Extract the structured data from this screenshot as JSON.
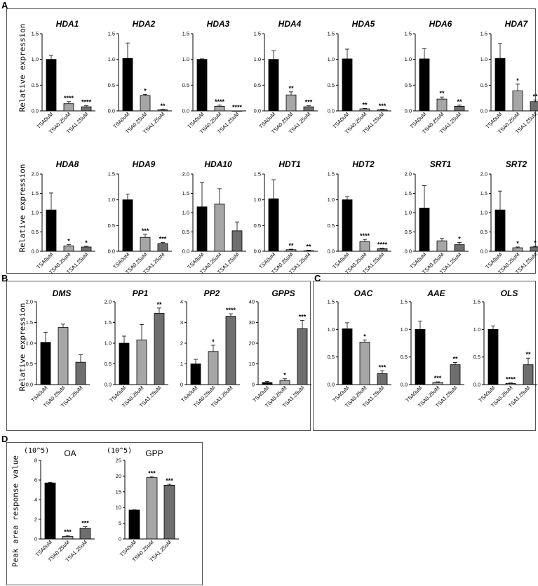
{
  "panels": [
    {
      "letter": "A",
      "ylabel": "Relative expression"
    },
    {
      "letter": "B",
      "ylabel": "Relative expression"
    },
    {
      "letter": "C"
    },
    {
      "letter": "D",
      "ylabel": "Peak area response value",
      "unit_labels": [
        "(10^5)",
        "(10^5)"
      ]
    }
  ],
  "categories": [
    "TSA0uM",
    "TSA0.25uM",
    "TSA1.25uM"
  ],
  "colors": {
    "bar1": "#000000",
    "bar2": "#a6a6a6",
    "bar3": "#6e6e6e"
  },
  "chart_data": [
    {
      "type": "bar",
      "panel": "A",
      "title": "HDA1",
      "ylim": [
        0,
        1.5
      ],
      "yticks": [
        "0.0",
        "0.5",
        "1.0",
        "1.5"
      ],
      "categories": [
        "TSA0uM",
        "TSA0.25uM",
        "TSA1.25uM"
      ],
      "values": [
        1.0,
        0.14,
        0.08
      ],
      "errors": [
        0.08,
        0.04,
        0.02
      ],
      "annotations": [
        "",
        "****",
        "****"
      ]
    },
    {
      "type": "bar",
      "panel": "A",
      "title": "HDA2",
      "ylim": [
        0,
        1.5
      ],
      "yticks": [
        "0.0",
        "0.5",
        "1.0",
        "1.5"
      ],
      "categories": [
        "TSA0uM",
        "TSA0.25uM",
        "TSA1.25uM"
      ],
      "values": [
        1.02,
        0.3,
        0.02
      ],
      "errors": [
        0.3,
        0.02,
        0.01
      ],
      "annotations": [
        "",
        "*",
        "**"
      ]
    },
    {
      "type": "bar",
      "panel": "A",
      "title": "HDA3",
      "ylim": [
        0,
        1.5
      ],
      "yticks": [
        "0.0",
        "0.5",
        "1.0",
        "1.5"
      ],
      "categories": [
        "TSA0uM",
        "TSA0.25uM",
        "TSA1.25uM"
      ],
      "values": [
        1.0,
        0.09,
        0.0
      ],
      "errors": [
        0.01,
        0.02,
        0.0
      ],
      "annotations": [
        "",
        "****",
        "****"
      ]
    },
    {
      "type": "bar",
      "panel": "A",
      "title": "HDA4",
      "ylim": [
        0,
        1.5
      ],
      "yticks": [
        "0.0",
        "0.5",
        "1.0",
        "1.5"
      ],
      "categories": [
        "TSA0uM",
        "TSA0.25uM",
        "TSA1.25uM"
      ],
      "values": [
        1.0,
        0.31,
        0.08
      ],
      "errors": [
        0.17,
        0.06,
        0.02
      ],
      "annotations": [
        "",
        "**",
        "***"
      ]
    },
    {
      "type": "bar",
      "panel": "A",
      "title": "HDA5",
      "ylim": [
        0,
        1.5
      ],
      "yticks": [
        "0.0",
        "0.5",
        "1.0",
        "1.5"
      ],
      "categories": [
        "TSA0uM",
        "TSA0.25uM",
        "TSA1.25uM"
      ],
      "values": [
        1.01,
        0.04,
        0.02
      ],
      "errors": [
        0.19,
        0.01,
        0.01
      ],
      "annotations": [
        "",
        "**",
        "***"
      ]
    },
    {
      "type": "bar",
      "panel": "A",
      "title": "HDA6",
      "ylim": [
        0,
        1.5
      ],
      "yticks": [
        "0.0",
        "0.5",
        "1.0",
        "1.5"
      ],
      "categories": [
        "TSA0uM",
        "TSA0.25uM",
        "TSA1.25uM"
      ],
      "values": [
        1.01,
        0.23,
        0.09
      ],
      "errors": [
        0.2,
        0.04,
        0.02
      ],
      "annotations": [
        "",
        "**",
        "**"
      ]
    },
    {
      "type": "bar",
      "panel": "A",
      "title": "HDA7",
      "ylim": [
        0,
        1.5
      ],
      "yticks": [
        "0.0",
        "0.5",
        "1.0",
        "1.5"
      ],
      "categories": [
        "TSA0uM",
        "TSA0.25uM",
        "TSA1.25uM"
      ],
      "values": [
        1.02,
        0.39,
        0.18
      ],
      "errors": [
        0.29,
        0.13,
        0.03
      ],
      "annotations": [
        "",
        "*",
        "**"
      ]
    },
    {
      "type": "bar",
      "panel": "A",
      "title": "HDA8",
      "ylim": [
        0,
        2.0
      ],
      "yticks": [
        "0.0",
        "0.5",
        "1.0",
        "1.5",
        "2.0"
      ],
      "categories": [
        "TSA0uM",
        "TSA0.25uM",
        "TSA1.25uM"
      ],
      "values": [
        1.07,
        0.14,
        0.11
      ],
      "errors": [
        0.44,
        0.03,
        0.02
      ],
      "annotations": [
        "",
        "*",
        "*"
      ]
    },
    {
      "type": "bar",
      "panel": "A",
      "title": "HDA9",
      "ylim": [
        0,
        1.5
      ],
      "yticks": [
        "0.0",
        "0.5",
        "1.0",
        "1.5"
      ],
      "categories": [
        "TSA0uM",
        "TSA0.25uM",
        "TSA1.25uM"
      ],
      "values": [
        1.0,
        0.27,
        0.15
      ],
      "errors": [
        0.11,
        0.06,
        0.02
      ],
      "annotations": [
        "",
        "***",
        "***"
      ]
    },
    {
      "type": "bar",
      "panel": "A",
      "title": "HDA10",
      "ylim": [
        0,
        2.0
      ],
      "yticks": [
        "0.0",
        "0.5",
        "1.0",
        "1.5",
        "2.0"
      ],
      "categories": [
        "TSA0uM",
        "TSA0.25uM",
        "TSA1.25uM"
      ],
      "values": [
        1.15,
        1.22,
        0.53
      ],
      "errors": [
        0.63,
        0.4,
        0.23
      ],
      "annotations": [
        "",
        "",
        ""
      ]
    },
    {
      "type": "bar",
      "panel": "A",
      "title": "HDT1",
      "ylim": [
        0,
        1.5
      ],
      "yticks": [
        "0.0",
        "0.5",
        "1.0",
        "1.5"
      ],
      "categories": [
        "TSA0uM",
        "TSA0.25uM",
        "TSA1.25uM"
      ],
      "values": [
        1.02,
        0.03,
        0.01
      ],
      "errors": [
        0.37,
        0.01,
        0.01
      ],
      "annotations": [
        "",
        "**",
        "**"
      ]
    },
    {
      "type": "bar",
      "panel": "A",
      "title": "HDT2",
      "ylim": [
        0,
        1.5
      ],
      "yticks": [
        "0.0",
        "0.5",
        "1.0",
        "1.5"
      ],
      "categories": [
        "TSA0uM",
        "TSA0.25uM",
        "TSA1.25uM"
      ],
      "values": [
        1.0,
        0.19,
        0.05
      ],
      "errors": [
        0.06,
        0.04,
        0.01
      ],
      "annotations": [
        "",
        "****",
        "****"
      ]
    },
    {
      "type": "bar",
      "panel": "A",
      "title": "SRT1",
      "ylim": [
        0,
        2.0
      ],
      "yticks": [
        "0.0",
        "0.5",
        "1.0",
        "1.5",
        "2.0"
      ],
      "categories": [
        "TSA0uM",
        "TSA0.25uM",
        "TSA1.25uM"
      ],
      "values": [
        1.12,
        0.27,
        0.17
      ],
      "errors": [
        0.58,
        0.06,
        0.06
      ],
      "annotations": [
        "",
        "",
        "*"
      ]
    },
    {
      "type": "bar",
      "panel": "A",
      "title": "SRT2",
      "ylim": [
        0,
        2.0
      ],
      "yticks": [
        "0.0",
        "0.5",
        "1.0",
        "1.5",
        "2.0"
      ],
      "categories": [
        "TSA0uM",
        "TSA0.25uM",
        "TSA1.25uM"
      ],
      "values": [
        1.07,
        0.09,
        0.11
      ],
      "errors": [
        0.49,
        0.02,
        0.02
      ],
      "annotations": [
        "",
        "*",
        "*"
      ]
    },
    {
      "type": "bar",
      "panel": "B",
      "title": "DMS",
      "ylim": [
        0,
        2.0
      ],
      "yticks": [
        "0.0",
        "0.5",
        "1.0",
        "1.5",
        "2.0"
      ],
      "categories": [
        "TSA0uM",
        "TSA0.25uM",
        "TSA1.25uM"
      ],
      "values": [
        1.02,
        1.38,
        0.54
      ],
      "errors": [
        0.24,
        0.08,
        0.18
      ],
      "annotations": [
        "",
        "",
        ""
      ]
    },
    {
      "type": "bar",
      "panel": "B",
      "title": "PP1",
      "ylim": [
        0,
        2.0
      ],
      "yticks": [
        "0.0",
        "0.5",
        "1.0",
        "1.5",
        "2.0"
      ],
      "categories": [
        "TSA0uM",
        "TSA0.25uM",
        "TSA1.25uM"
      ],
      "values": [
        1.0,
        1.08,
        1.72
      ],
      "errors": [
        0.17,
        0.37,
        0.13
      ],
      "annotations": [
        "",
        "",
        "**"
      ]
    },
    {
      "type": "bar",
      "panel": "B",
      "title": "PP2",
      "ylim": [
        0,
        4
      ],
      "yticks": [
        "0",
        "1",
        "2",
        "3",
        "4"
      ],
      "categories": [
        "TSA0uM",
        "TSA0.25uM",
        "TSA1.25uM"
      ],
      "values": [
        1.0,
        1.6,
        3.3
      ],
      "errors": [
        0.22,
        0.3,
        0.12
      ],
      "annotations": [
        "",
        "*",
        "****"
      ]
    },
    {
      "type": "bar",
      "panel": "B",
      "title": "GPPS",
      "ylim": [
        0,
        40
      ],
      "yticks": [
        "0",
        "10",
        "20",
        "30",
        "40"
      ],
      "categories": [
        "TSA0uM",
        "TSA0.25uM",
        "TSA1.25uM"
      ],
      "values": [
        1.0,
        2.0,
        27.0
      ],
      "errors": [
        0.5,
        0.8,
        4.0
      ],
      "annotations": [
        "",
        "*",
        "***"
      ]
    },
    {
      "type": "bar",
      "panel": "C",
      "title": "OAC",
      "ylim": [
        0,
        1.5
      ],
      "yticks": [
        "0.0",
        "0.5",
        "1.0",
        "1.5"
      ],
      "categories": [
        "TSA0uM",
        "TSA0.25uM",
        "TSA1.25uM"
      ],
      "values": [
        1.01,
        0.77,
        0.2
      ],
      "errors": [
        0.11,
        0.04,
        0.05
      ],
      "annotations": [
        "",
        "*",
        "***"
      ]
    },
    {
      "type": "bar",
      "panel": "C",
      "title": "AAE",
      "ylim": [
        0,
        1.5
      ],
      "yticks": [
        "0.0",
        "0.5",
        "1.0",
        "1.5"
      ],
      "categories": [
        "TSA0uM",
        "TSA0.25uM",
        "TSA1.25uM"
      ],
      "values": [
        1.0,
        0.04,
        0.36
      ],
      "errors": [
        0.15,
        0.01,
        0.04
      ],
      "annotations": [
        "",
        "***",
        "**"
      ]
    },
    {
      "type": "bar",
      "panel": "C",
      "title": "OLS",
      "ylim": [
        0,
        1.5
      ],
      "yticks": [
        "0.0",
        "0.5",
        "1.0",
        "1.5"
      ],
      "categories": [
        "TSA0uM",
        "TSA0.25uM",
        "TSA1.25uM"
      ],
      "values": [
        1.0,
        0.02,
        0.36
      ],
      "errors": [
        0.06,
        0.01,
        0.12
      ],
      "annotations": [
        "",
        "****",
        "**"
      ]
    },
    {
      "type": "bar",
      "panel": "D",
      "title": "OA",
      "ylim": [
        0,
        8
      ],
      "yticks": [
        "0",
        "2",
        "4",
        "6",
        "8"
      ],
      "categories": [
        "TSA0uM",
        "TSA0.25uM",
        "TSA1.25uM"
      ],
      "values": [
        5.7,
        0.25,
        1.1
      ],
      "errors": [
        0.05,
        0.1,
        0.15
      ],
      "annotations": [
        "",
        "***",
        "***"
      ]
    },
    {
      "type": "bar",
      "panel": "D",
      "title": "GPP",
      "ylim": [
        0,
        25
      ],
      "yticks": [
        "0",
        "5",
        "10",
        "15",
        "20",
        "25"
      ],
      "categories": [
        "TSA0uM",
        "TSA0.25uM",
        "TSA1.25uM"
      ],
      "values": [
        9.2,
        19.5,
        17.1
      ],
      "errors": [
        0.1,
        0.3,
        0.3
      ],
      "annotations": [
        "",
        "***",
        "***"
      ]
    }
  ]
}
